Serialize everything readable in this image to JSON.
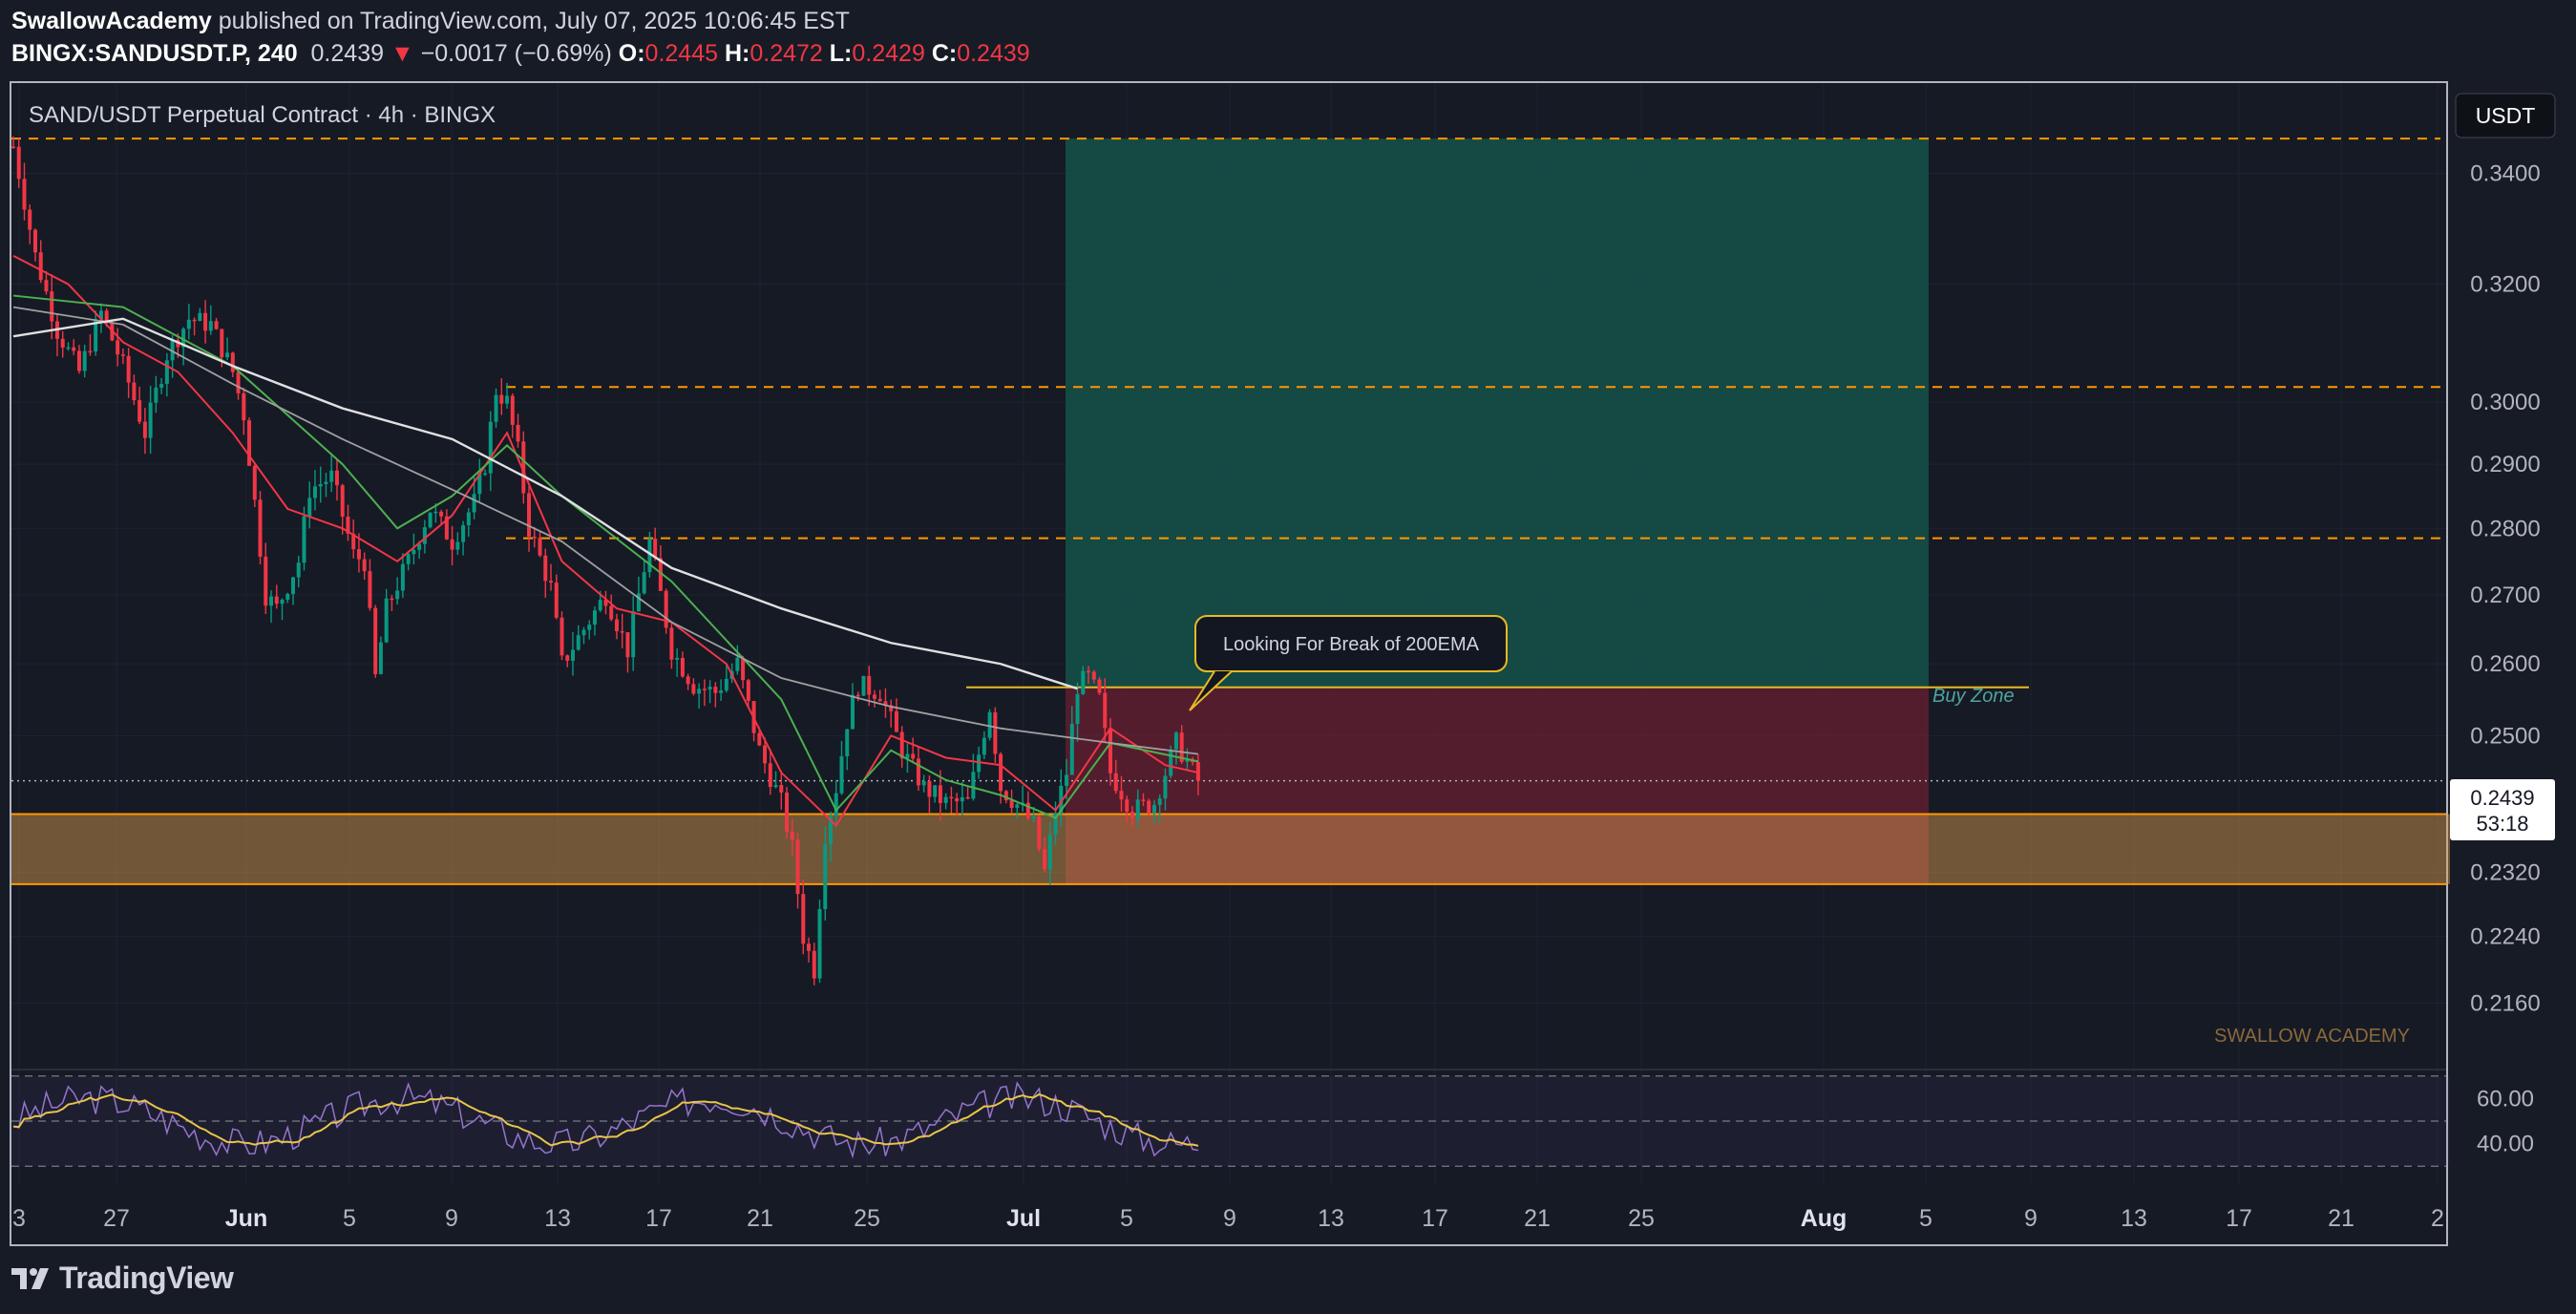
{
  "header": {
    "publisher": "SwallowAcademy",
    "published_text": "published on TradingView.com, July 07, 2025 10:06:45 EST",
    "symbol": "BINGX:SANDUSDT.P, 240",
    "last_price": "0.2439",
    "change_arrow": "▼",
    "change": "−0.0017 (−0.69%)",
    "o_label": "O:",
    "o_value": "0.2445",
    "h_label": "H:",
    "h_value": "0.2472",
    "l_label": "L:",
    "l_value": "0.2429",
    "c_label": "C:",
    "c_value": "0.2439"
  },
  "pane": {
    "title": "SAND/USDT Perpetual Contract · 4h · BINGX",
    "currency_button": "USDT",
    "price_tag": "0.2439",
    "countdown": "53:18",
    "watermark": "SWALLOW ACADEMY",
    "annotation": "Looking For Break of 200EMA",
    "buy_zone_label": "Buy Zone"
  },
  "brand": "TradingView",
  "colors": {
    "background": "#171b25",
    "bull": "#089981",
    "bear": "#f23645",
    "ema_fast": "#f23645",
    "ema_mid": "#4caf50",
    "ema_slow": "#e0e0e0",
    "level_dash": "#ff9800",
    "zone": "#e0a050",
    "target": "#1a5c4e",
    "stop": "#6e2030",
    "rsi": "#9575cd",
    "rsi_ma": "#e8c547",
    "annotation_border": "#e8b923"
  },
  "chart_data": {
    "type": "candlestick",
    "x_tick_labels": [
      "3",
      "27",
      "Jun",
      "5",
      "9",
      "13",
      "17",
      "21",
      "25",
      "Jul",
      "5",
      "9",
      "13",
      "17",
      "21",
      "25",
      "Aug",
      "5",
      "9",
      "13",
      "17",
      "21",
      "2"
    ],
    "y_tick_labels": [
      "0.3400",
      "0.3200",
      "0.3000",
      "0.2900",
      "0.2800",
      "0.2700",
      "0.2600",
      "0.2500",
      "0.2320",
      "0.2240",
      "0.2160"
    ],
    "rsi_tick_labels": [
      "60.00",
      "40.00"
    ],
    "y_scale": "log",
    "ylim": [
      0.2085,
      0.357
    ],
    "horizontal_levels": [
      0.3465,
      0.3025,
      0.2785
    ],
    "support_zone": [
      0.2305,
      0.2395
    ],
    "entry": 0.2567,
    "long_position": {
      "target": 0.3465,
      "entry": 0.2567,
      "stop": 0.2305
    },
    "last_price": 0.2439,
    "price_path": [
      [
        0,
        0.345
      ],
      [
        4,
        0.325
      ],
      [
        8,
        0.312
      ],
      [
        12,
        0.305
      ],
      [
        16,
        0.315
      ],
      [
        20,
        0.306
      ],
      [
        24,
        0.295
      ],
      [
        28,
        0.308
      ],
      [
        32,
        0.314
      ],
      [
        36,
        0.313
      ],
      [
        40,
        0.305
      ],
      [
        42,
        0.298
      ],
      [
        44,
        0.284
      ],
      [
        46,
        0.27
      ],
      [
        48,
        0.268
      ],
      [
        52,
        0.275
      ],
      [
        54,
        0.286
      ],
      [
        58,
        0.288
      ],
      [
        62,
        0.276
      ],
      [
        64,
        0.275
      ],
      [
        66,
        0.258
      ],
      [
        68,
        0.268
      ],
      [
        72,
        0.275
      ],
      [
        76,
        0.283
      ],
      [
        80,
        0.278
      ],
      [
        84,
        0.284
      ],
      [
        86,
        0.29
      ],
      [
        88,
        0.302
      ],
      [
        90,
        0.3
      ],
      [
        92,
        0.292
      ],
      [
        94,
        0.28
      ],
      [
        98,
        0.271
      ],
      [
        100,
        0.26
      ],
      [
        104,
        0.265
      ],
      [
        108,
        0.27
      ],
      [
        112,
        0.262
      ],
      [
        116,
        0.278
      ],
      [
        118,
        0.27
      ],
      [
        120,
        0.262
      ],
      [
        124,
        0.257
      ],
      [
        128,
        0.256
      ],
      [
        132,
        0.26
      ],
      [
        136,
        0.248
      ],
      [
        140,
        0.241
      ],
      [
        142,
        0.235
      ],
      [
        144,
        0.224
      ],
      [
        146,
        0.22
      ],
      [
        148,
        0.237
      ],
      [
        150,
        0.243
      ],
      [
        152,
        0.252
      ],
      [
        154,
        0.257
      ],
      [
        158,
        0.256
      ],
      [
        162,
        0.248
      ],
      [
        166,
        0.243
      ],
      [
        170,
        0.241
      ],
      [
        174,
        0.241
      ],
      [
        178,
        0.254
      ],
      [
        180,
        0.243
      ],
      [
        184,
        0.24
      ],
      [
        186,
        0.238
      ],
      [
        188,
        0.232
      ],
      [
        190,
        0.24
      ],
      [
        192,
        0.245
      ],
      [
        194,
        0.257
      ],
      [
        196,
        0.258
      ],
      [
        198,
        0.255
      ],
      [
        200,
        0.245
      ],
      [
        204,
        0.24
      ],
      [
        208,
        0.241
      ],
      [
        212,
        0.249
      ],
      [
        216,
        0.2439
      ]
    ],
    "ema_slow_path": [
      [
        0,
        0.311
      ],
      [
        20,
        0.314
      ],
      [
        40,
        0.306
      ],
      [
        60,
        0.299
      ],
      [
        80,
        0.294
      ],
      [
        100,
        0.285
      ],
      [
        120,
        0.274
      ],
      [
        140,
        0.268
      ],
      [
        160,
        0.263
      ],
      [
        180,
        0.26
      ],
      [
        194,
        0.2565
      ]
    ],
    "ema_mid_path": [
      [
        0,
        0.316
      ],
      [
        20,
        0.313
      ],
      [
        40,
        0.303
      ],
      [
        60,
        0.294
      ],
      [
        80,
        0.286
      ],
      [
        100,
        0.278
      ],
      [
        120,
        0.266
      ],
      [
        140,
        0.258
      ],
      [
        160,
        0.254
      ],
      [
        180,
        0.251
      ],
      [
        200,
        0.249
      ],
      [
        216,
        0.2475
      ]
    ],
    "ema_fast_path": [
      [
        0,
        0.325
      ],
      [
        10,
        0.32
      ],
      [
        20,
        0.31
      ],
      [
        30,
        0.305
      ],
      [
        40,
        0.295
      ],
      [
        50,
        0.283
      ],
      [
        60,
        0.28
      ],
      [
        70,
        0.275
      ],
      [
        80,
        0.282
      ],
      [
        90,
        0.295
      ],
      [
        100,
        0.275
      ],
      [
        110,
        0.268
      ],
      [
        120,
        0.266
      ],
      [
        130,
        0.26
      ],
      [
        140,
        0.245
      ],
      [
        150,
        0.238
      ],
      [
        160,
        0.25
      ],
      [
        170,
        0.247
      ],
      [
        180,
        0.246
      ],
      [
        190,
        0.24
      ],
      [
        200,
        0.251
      ],
      [
        210,
        0.246
      ],
      [
        216,
        0.245
      ]
    ],
    "ema_green_path": [
      [
        0,
        0.318
      ],
      [
        20,
        0.316
      ],
      [
        40,
        0.306
      ],
      [
        60,
        0.29
      ],
      [
        70,
        0.28
      ],
      [
        80,
        0.285
      ],
      [
        90,
        0.293
      ],
      [
        100,
        0.285
      ],
      [
        120,
        0.272
      ],
      [
        140,
        0.255
      ],
      [
        150,
        0.24
      ],
      [
        160,
        0.248
      ],
      [
        170,
        0.244
      ],
      [
        180,
        0.242
      ],
      [
        190,
        0.239
      ],
      [
        200,
        0.249
      ],
      [
        216,
        0.2465
      ]
    ],
    "rsi_ylim": [
      28,
      72
    ],
    "rsi_levels": [
      70,
      50,
      30
    ]
  }
}
